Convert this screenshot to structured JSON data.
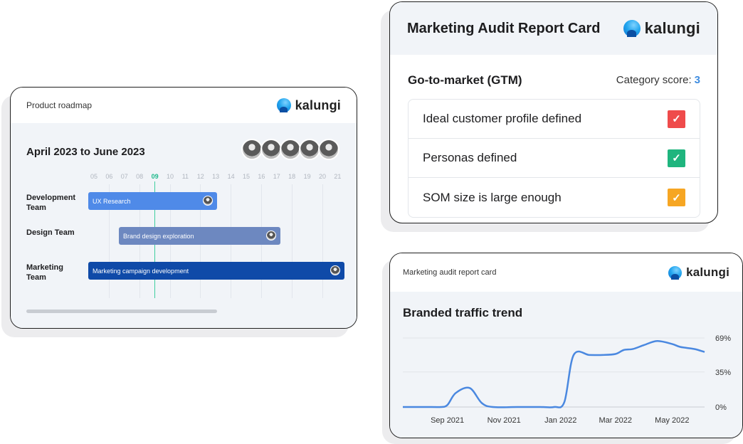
{
  "brand": "kalungi",
  "roadmap": {
    "title": "Product roadmap",
    "range": "April 2023 to June 2023",
    "weeks": [
      "05",
      "06",
      "07",
      "08",
      "09",
      "10",
      "11",
      "12",
      "13",
      "14",
      "15",
      "16",
      "17",
      "18",
      "19",
      "20",
      "21"
    ],
    "current_week": "09",
    "teams": [
      {
        "name": "Development Team",
        "task": "UX Research",
        "color": "#4f8ae8"
      },
      {
        "name": "Design Team",
        "task": "Brand design exploration",
        "color": "#6d88c0"
      },
      {
        "name": "Marketing Team",
        "task": "Marketing campaign development",
        "color": "#0f4aa8"
      }
    ]
  },
  "audit": {
    "title": "Marketing Audit Report Card",
    "section": "Go-to-market (GTM)",
    "score_label": "Category score:",
    "score_value": "3",
    "items": [
      {
        "label": "Ideal customer profile defined",
        "status": "red",
        "color": "#ef4b4b"
      },
      {
        "label": "Personas defined",
        "status": "green",
        "color": "#1fb57e"
      },
      {
        "label": "SOM size is large enough",
        "status": "yellow",
        "color": "#f6a623"
      }
    ]
  },
  "traffic": {
    "card_title": "Marketing audit report card",
    "chart_data": {
      "type": "line",
      "title": "Branded traffic trend",
      "xlabel": "",
      "ylabel": "",
      "x_ticks": [
        "Sep 2021",
        "Nov 2021",
        "Jan 2022",
        "Mar 2022",
        "May 2022"
      ],
      "y_ticks": [
        "0%",
        "35%",
        "69%"
      ],
      "ylim": [
        0,
        69
      ],
      "series": [
        {
          "color": "#4a88e0",
          "x": [
            "2021-07-15",
            "2021-08-15",
            "2021-08-25",
            "2021-09-01",
            "2021-09-10",
            "2021-09-25",
            "2021-10-08",
            "2021-10-20",
            "2021-11-15",
            "2021-12-10",
            "2021-12-25",
            "2022-01-05",
            "2022-01-15",
            "2022-02-01",
            "2022-02-15",
            "2022-03-01",
            "2022-03-10",
            "2022-03-20",
            "2022-04-01",
            "2022-04-15",
            "2022-05-01",
            "2022-05-10",
            "2022-05-25",
            "2022-06-05"
          ],
          "y": [
            0,
            0,
            0,
            2,
            14,
            19,
            4,
            0,
            0,
            0,
            0,
            5,
            52,
            52,
            52,
            53,
            57,
            58,
            62,
            66,
            63,
            60,
            58,
            55
          ]
        }
      ]
    }
  }
}
